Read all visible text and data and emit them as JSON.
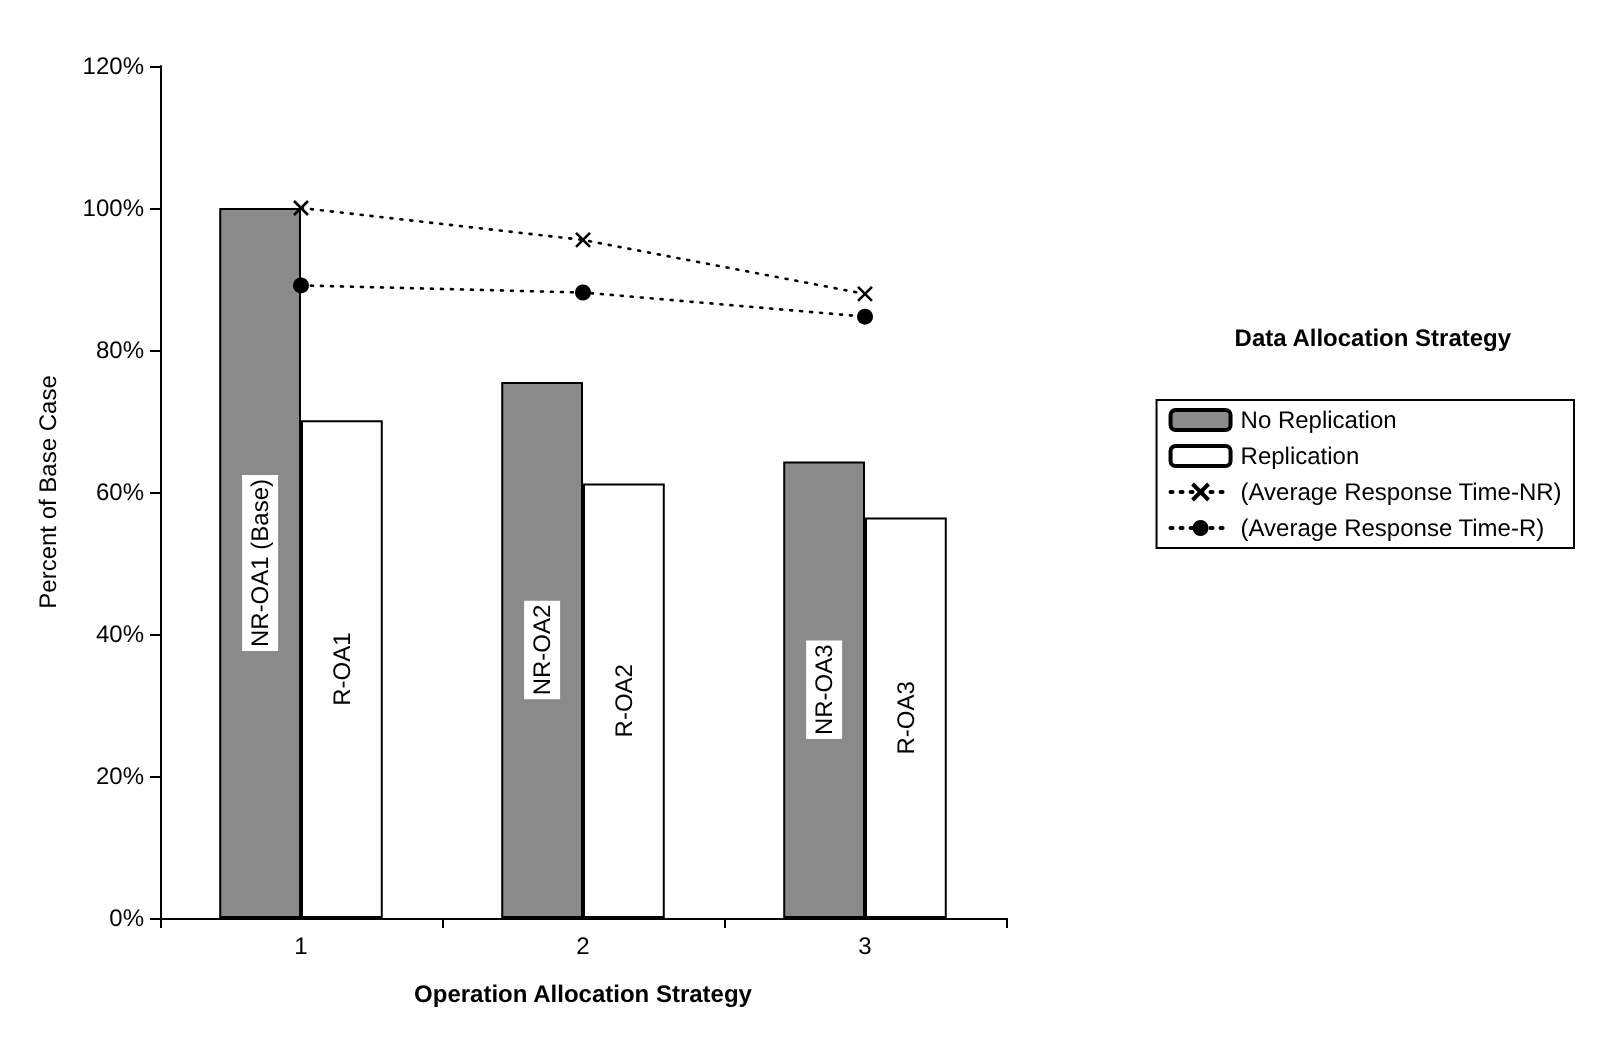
{
  "chart_data": {
    "type": "bar",
    "xlabel": "Operation Allocation Strategy",
    "ylabel": "Percent of Base Case",
    "legend_title": "Data Allocation Strategy",
    "legend": "right",
    "grid": false,
    "categories": [
      "1",
      "2",
      "3"
    ],
    "ylim": [
      0,
      120
    ],
    "yticks": [
      {
        "value": 0,
        "label": "0%"
      },
      {
        "value": 20,
        "label": "20%"
      },
      {
        "value": 40,
        "label": "40%"
      },
      {
        "value": 60,
        "label": "60%"
      },
      {
        "value": 80,
        "label": "80%"
      },
      {
        "value": 100,
        "label": "100%"
      },
      {
        "value": 120,
        "label": "120%"
      }
    ],
    "series": [
      {
        "name": "No Replication",
        "color": "#8a8a8a",
        "values": [
          100,
          75.5,
          64.3
        ],
        "value_labels": [
          "NR-OA1 (Base)",
          "NR-OA2",
          "NR-OA3"
        ]
      },
      {
        "name": "Replication",
        "color": "#ffffff",
        "values": [
          70.1,
          61.2,
          56.4
        ],
        "value_labels": [
          "R-OA1",
          "R-OA2",
          "R-OA3"
        ]
      },
      {
        "name": "(Average Response Time-NR)",
        "type": "line",
        "color": "#000000",
        "marker": "cross",
        "line_style": "dotted",
        "values": [
          100,
          95.5,
          87.9
        ]
      },
      {
        "name": "(Average Response Time-R)",
        "type": "line",
        "color": "#000000",
        "marker": "circle",
        "line_style": "dotted",
        "values": [
          89.1,
          88.1,
          84.7
        ]
      }
    ]
  }
}
